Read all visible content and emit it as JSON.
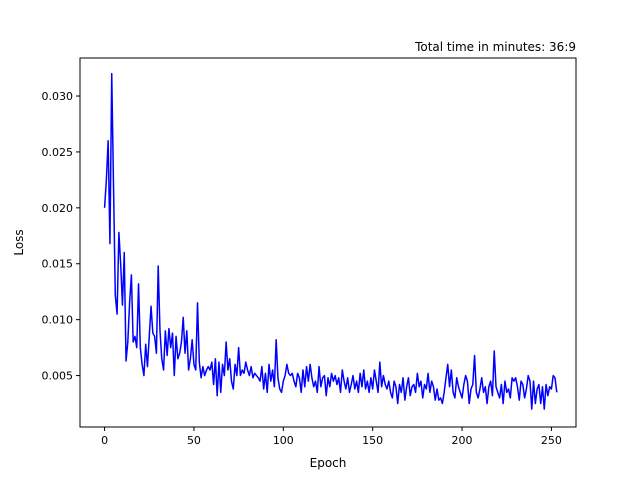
{
  "chart_data": {
    "type": "line",
    "title": "Total time in minutes: 36:9",
    "xlabel": "Epoch",
    "ylabel": "Loss",
    "xlim": [
      -13.75,
      263.75
    ],
    "ylim": [
      0.0004,
      0.0334
    ],
    "xticks": [
      0,
      50,
      100,
      150,
      200,
      250
    ],
    "xtick_labels": [
      "0",
      "50",
      "100",
      "150",
      "200",
      "250"
    ],
    "yticks": [
      0.005,
      0.01,
      0.015,
      0.02,
      0.025,
      0.03
    ],
    "ytick_labels": [
      "0.005",
      "0.010",
      "0.015",
      "0.020",
      "0.025",
      "0.030"
    ],
    "grid": false,
    "legend": "none",
    "series": [
      {
        "color": "#0000ff",
        "x_start": 0,
        "x_step": 1,
        "values": [
          0.02,
          0.0225,
          0.026,
          0.0168,
          0.032,
          0.022,
          0.0122,
          0.0105,
          0.0178,
          0.015,
          0.0113,
          0.016,
          0.0063,
          0.008,
          0.0115,
          0.014,
          0.008,
          0.0085,
          0.0075,
          0.0132,
          0.0075,
          0.006,
          0.005,
          0.0078,
          0.0058,
          0.0085,
          0.0112,
          0.0088,
          0.0085,
          0.007,
          0.0148,
          0.009,
          0.0065,
          0.0055,
          0.009,
          0.0068,
          0.0092,
          0.0075,
          0.0088,
          0.005,
          0.0085,
          0.0065,
          0.007,
          0.008,
          0.0102,
          0.007,
          0.009,
          0.0055,
          0.0065,
          0.0082,
          0.006,
          0.0055,
          0.0115,
          0.0062,
          0.0048,
          0.0058,
          0.005,
          0.0055,
          0.0058,
          0.0055,
          0.0062,
          0.0042,
          0.0065,
          0.0032,
          0.0062,
          0.0035,
          0.006,
          0.005,
          0.008,
          0.0055,
          0.0065,
          0.0045,
          0.0038,
          0.006,
          0.005,
          0.0075,
          0.005,
          0.0055,
          0.0052,
          0.0062,
          0.0055,
          0.005,
          0.0058,
          0.0048,
          0.0052,
          0.005,
          0.0048,
          0.0045,
          0.0058,
          0.0038,
          0.0052,
          0.0035,
          0.006,
          0.0045,
          0.0055,
          0.004,
          0.0082,
          0.0048,
          0.0038,
          0.0035,
          0.0045,
          0.005,
          0.006,
          0.0052,
          0.005,
          0.0052,
          0.0045,
          0.004,
          0.0052,
          0.0048,
          0.0035,
          0.0055,
          0.004,
          0.0058,
          0.0045,
          0.006,
          0.0048,
          0.004,
          0.0045,
          0.0035,
          0.0058,
          0.004,
          0.0048,
          0.005,
          0.0032,
          0.0048,
          0.004,
          0.0052,
          0.0045,
          0.005,
          0.0042,
          0.0048,
          0.0035,
          0.0055,
          0.0045,
          0.0038,
          0.0048,
          0.0035,
          0.0042,
          0.005,
          0.0038,
          0.0045,
          0.0035,
          0.0052,
          0.004,
          0.0055,
          0.0038,
          0.0045,
          0.0035,
          0.0048,
          0.0038,
          0.0055,
          0.0045,
          0.0035,
          0.0062,
          0.004,
          0.005,
          0.0042,
          0.0038,
          0.0045,
          0.0035,
          0.003,
          0.0045,
          0.004,
          0.0025,
          0.0042,
          0.0035,
          0.0048,
          0.0028,
          0.004,
          0.0048,
          0.0032,
          0.004,
          0.0042,
          0.0035,
          0.0052,
          0.004,
          0.0045,
          0.003,
          0.0042,
          0.0038,
          0.0052,
          0.0035,
          0.0045,
          0.004,
          0.0028,
          0.0038,
          0.0028,
          0.003,
          0.0025,
          0.0035,
          0.0048,
          0.006,
          0.004,
          0.0055,
          0.0035,
          0.003,
          0.0048,
          0.004,
          0.0035,
          0.003,
          0.0042,
          0.005,
          0.0045,
          0.0025,
          0.0038,
          0.0042,
          0.0068,
          0.0035,
          0.003,
          0.0038,
          0.0048,
          0.0035,
          0.004,
          0.0025,
          0.004,
          0.0045,
          0.0032,
          0.0072,
          0.004,
          0.0035,
          0.003,
          0.0042,
          0.0025,
          0.0045,
          0.0035,
          0.0038,
          0.003,
          0.0048,
          0.0045,
          0.0048,
          0.004,
          0.0028,
          0.0045,
          0.0042,
          0.003,
          0.0038,
          0.005,
          0.0045,
          0.002,
          0.0045,
          0.0025,
          0.0038,
          0.0042,
          0.0025,
          0.004,
          0.002,
          0.0042,
          0.0032,
          0.004,
          0.0038,
          0.005,
          0.0048,
          0.0035
        ]
      }
    ]
  }
}
